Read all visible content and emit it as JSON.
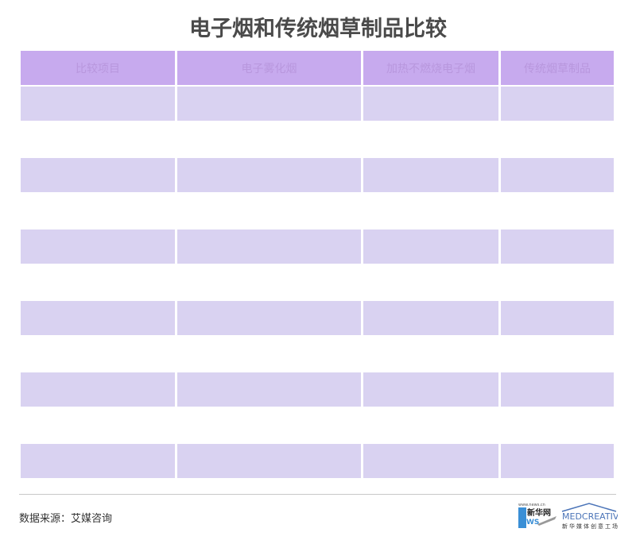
{
  "title": "电子烟和传统烟草制品比较",
  "chart_data": {
    "type": "table",
    "title": "电子烟和传统烟草制品比较",
    "columns": [
      "比较项目",
      "电子雾化烟",
      "加热不燃烧电子烟",
      "传统烟草制品"
    ],
    "rows": [
      [
        "",
        "",
        "",
        ""
      ],
      [
        "",
        "",
        "",
        ""
      ],
      [
        "",
        "",
        "",
        ""
      ],
      [
        "",
        "",
        "",
        ""
      ],
      [
        "",
        "",
        "",
        ""
      ],
      [
        "",
        "",
        "",
        ""
      ],
      [
        "",
        "",
        "",
        ""
      ],
      [
        "",
        "",
        "",
        ""
      ],
      [
        "",
        "",
        "",
        ""
      ],
      [
        "",
        "",
        "",
        ""
      ],
      [
        "",
        "",
        "",
        ""
      ]
    ],
    "colors": {
      "header": "#c7aaee",
      "header_text": "#b897dd",
      "row_shaded": "#d9d2f1",
      "row_plain": "#ffffff"
    }
  },
  "footer": {
    "source": "数据来源：艾媒咨询",
    "logo1": {
      "url_text": "www.news.cn",
      "name": "新华网",
      "brand": "NEWS"
    },
    "logo2": {
      "name": "MEDCREATIVE",
      "subtitle": "新华媒体创意工场"
    }
  }
}
